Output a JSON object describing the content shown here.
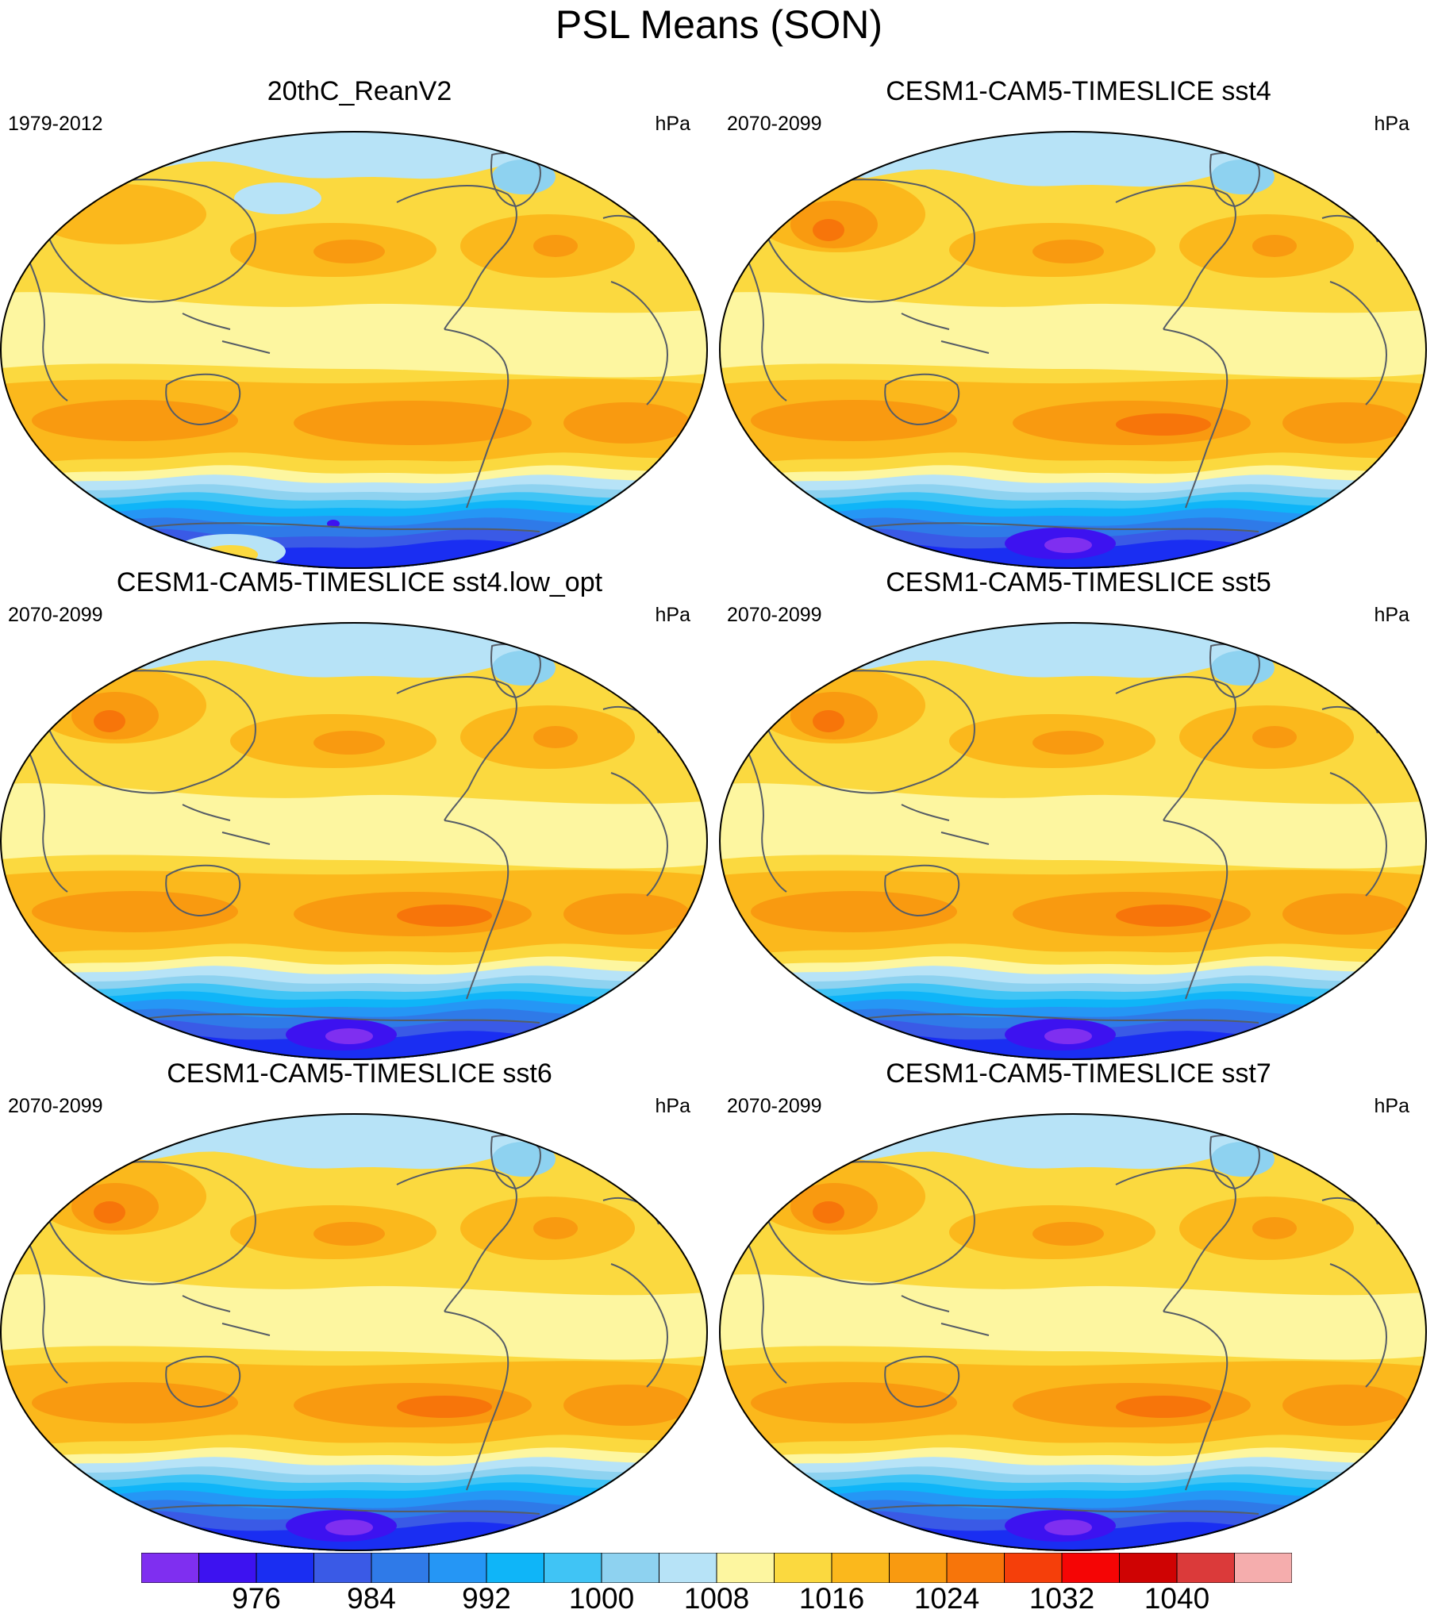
{
  "figure": {
    "title": "PSL Means (SON)"
  },
  "panels": [
    {
      "title": "20thC_ReanV2",
      "period": "1979-2012",
      "units": "hPa",
      "variant": "obs"
    },
    {
      "title": "CESM1-CAM5-TIMESLICE sst4",
      "period": "2070-2099",
      "units": "hPa",
      "variant": "model"
    },
    {
      "title": "CESM1-CAM5-TIMESLICE sst4.low_opt",
      "period": "2070-2099",
      "units": "hPa",
      "variant": "model"
    },
    {
      "title": "CESM1-CAM5-TIMESLICE sst5",
      "period": "2070-2099",
      "units": "hPa",
      "variant": "model"
    },
    {
      "title": "CESM1-CAM5-TIMESLICE sst6",
      "period": "2070-2099",
      "units": "hPa",
      "variant": "model"
    },
    {
      "title": "CESM1-CAM5-TIMESLICE sst7",
      "period": "2070-2099",
      "units": "hPa",
      "variant": "model"
    }
  ],
  "colorbar": {
    "levels": [
      972,
      976,
      980,
      984,
      988,
      992,
      996,
      1000,
      1004,
      1008,
      1012,
      1016,
      1020,
      1024,
      1028,
      1032,
      1036,
      1040,
      1044
    ],
    "tick_labels": [
      "976",
      "984",
      "992",
      "1000",
      "1008",
      "1016",
      "1024",
      "1032",
      "1040"
    ],
    "colors": [
      "#7f2ff0",
      "#3d12f0",
      "#1a2ef2",
      "#3a5ae6",
      "#2f7ae8",
      "#2596f5",
      "#0fb5f8",
      "#40c4f5",
      "#8ed2f0",
      "#b7e3f7",
      "#fdf6a0",
      "#fbd93f",
      "#fbb81c",
      "#f99a10",
      "#f7750a",
      "#f53f0a",
      "#f50505",
      "#cf0303",
      "#db3a3a",
      "#f5adad"
    ]
  }
}
